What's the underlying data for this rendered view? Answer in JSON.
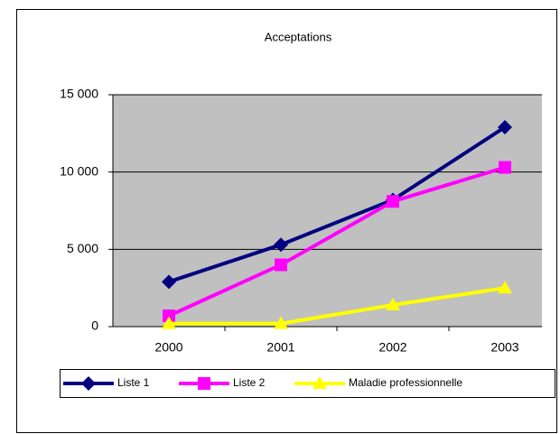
{
  "chart_data": {
    "type": "line",
    "title": "Acceptations",
    "categories": [
      "2000",
      "2001",
      "2002",
      "2003"
    ],
    "series": [
      {
        "name": "Liste 1",
        "color": "#000080",
        "marker": "diamond",
        "values": [
          2900,
          5300,
          8200,
          12900
        ]
      },
      {
        "name": "Liste 2",
        "color": "#ff00ff",
        "marker": "square",
        "values": [
          700,
          4000,
          8100,
          10300
        ]
      },
      {
        "name": "Maladie professionnelle",
        "color": "#ffff00",
        "marker": "triangle",
        "values": [
          200,
          200,
          1400,
          2500
        ]
      }
    ],
    "ylim": [
      0,
      15000
    ],
    "yticks": [
      0,
      {
        "value": 5000,
        "label": "5 000"
      },
      {
        "value": 10000,
        "label": "10 000"
      },
      {
        "value": 15000,
        "label": "15 000"
      }
    ],
    "grid": true,
    "legend": "bottom"
  }
}
